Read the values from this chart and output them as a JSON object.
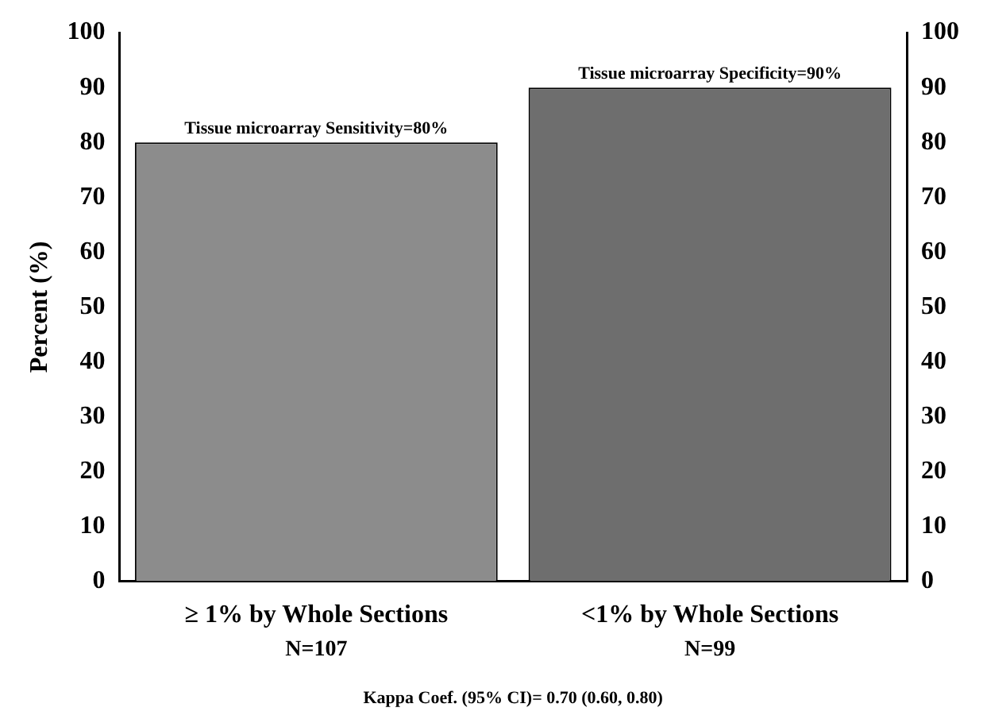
{
  "chart_data": {
    "type": "bar",
    "ylabel": "Percent (%)",
    "categories": [
      "≥ 1% by Whole Sections",
      "<1% by Whole Sections"
    ],
    "values": [
      80,
      90
    ],
    "colors": [
      "#8c8c8c",
      "#6e6e6e"
    ],
    "ylim": [
      0,
      100
    ],
    "yticks": [
      0,
      10,
      20,
      30,
      40,
      50,
      60,
      70,
      80,
      90,
      100
    ],
    "y2lim": [
      0,
      100
    ],
    "y2ticks": [
      0,
      10,
      20,
      30,
      40,
      50,
      60,
      70,
      80,
      90,
      100
    ],
    "grid": false,
    "legend": false,
    "annotations": [
      {
        "text": "Tissue microarray Sensitivity=80%",
        "x": "≥ 1% by Whole Sections",
        "y": 80
      },
      {
        "text": "Tissue microarray Specificity=90%",
        "x": "<1% by Whole Sections",
        "y": 90
      },
      "N=107",
      "N=99",
      "Kappa Coef. (95% CI)= 0.70 (0.60, 0.80)"
    ]
  }
}
